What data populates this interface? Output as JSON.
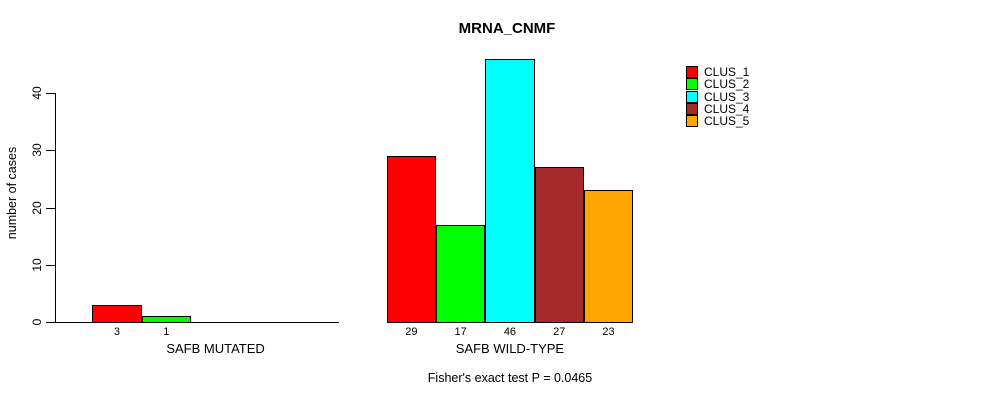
{
  "chart_data": {
    "type": "bar",
    "title": "MRNA_CNMF",
    "ylabel": "number of cases",
    "ylim": [
      0,
      46
    ],
    "yticks": [
      0,
      10,
      20,
      30,
      40
    ],
    "grid": false,
    "legend_position": "right",
    "legend": [
      {
        "label": "CLUS_1",
        "color": "#ff0000"
      },
      {
        "label": "CLUS_2",
        "color": "#00ff00"
      },
      {
        "label": "CLUS_3",
        "color": "#00ffff"
      },
      {
        "label": "CLUS_4",
        "color": "#a52a2a"
      },
      {
        "label": "CLUS_5",
        "color": "#ffa500"
      }
    ],
    "groups": [
      {
        "label": "SAFB MUTATED",
        "values": [
          3,
          1,
          0,
          0,
          0
        ]
      },
      {
        "label": "SAFB WILD-TYPE",
        "values": [
          29,
          17,
          46,
          27,
          23
        ]
      }
    ],
    "annotation": "Fisher's exact test P = 0.0465"
  }
}
